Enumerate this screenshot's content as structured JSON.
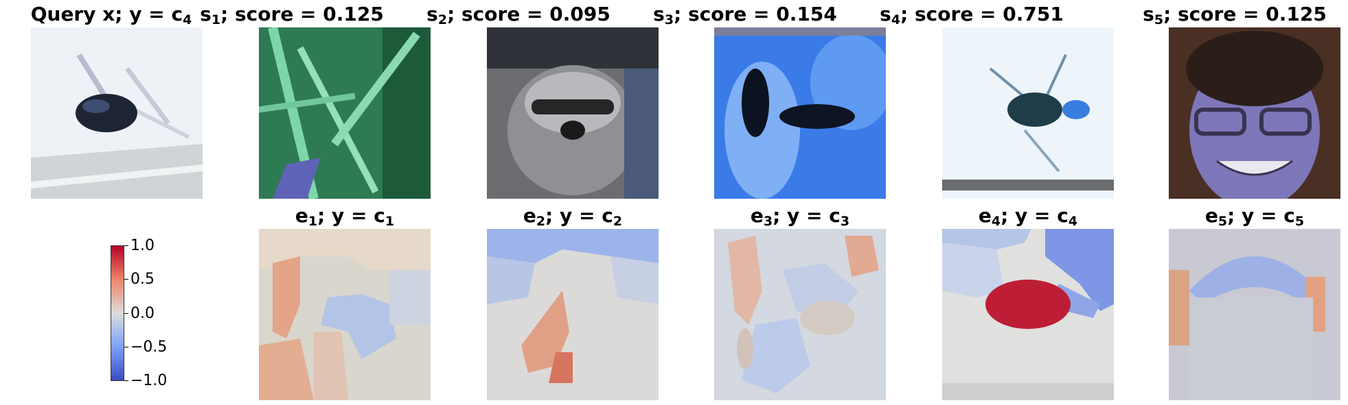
{
  "query": {
    "label": "Query x; ",
    "y_label": "y = c",
    "y_sub": "4"
  },
  "samples": [
    {
      "s": "s",
      "sub": "1",
      "score_text": "; score = 0.125",
      "score": 0.125,
      "image": "grass-leaves"
    },
    {
      "s": "s",
      "sub": "2",
      "score_text": "; score = 0.095",
      "score": 0.095,
      "image": "raccoon"
    },
    {
      "s": "s",
      "sub": "3",
      "score_text": "; score = 0.154",
      "score": 0.154,
      "image": "insect-blue-background"
    },
    {
      "s": "s",
      "sub": "4",
      "score_text": "; score = 0.751",
      "score": 0.751,
      "image": "beetle-white-background"
    },
    {
      "s": "s",
      "sub": "5",
      "score_text": "; score = 0.125",
      "score": 0.125,
      "image": "smiling-face-glasses"
    }
  ],
  "explanations": [
    {
      "e": "e",
      "sub": "1",
      "y_text": "; y = c",
      "c_sub": "1"
    },
    {
      "e": "e",
      "sub": "2",
      "y_text": "; y = c",
      "c_sub": "2"
    },
    {
      "e": "e",
      "sub": "3",
      "y_text": "; y = c",
      "c_sub": "3"
    },
    {
      "e": "e",
      "sub": "4",
      "y_text": "; y = c",
      "c_sub": "4"
    },
    {
      "e": "e",
      "sub": "5",
      "y_text": "; y = c",
      "c_sub": "5"
    }
  ],
  "colorbar": {
    "colormap": "coolwarm",
    "range": [
      -1.0,
      1.0
    ],
    "tick_labels": [
      "1.0",
      "0.5",
      "0.0",
      "−0.5",
      "−1.0"
    ]
  }
}
